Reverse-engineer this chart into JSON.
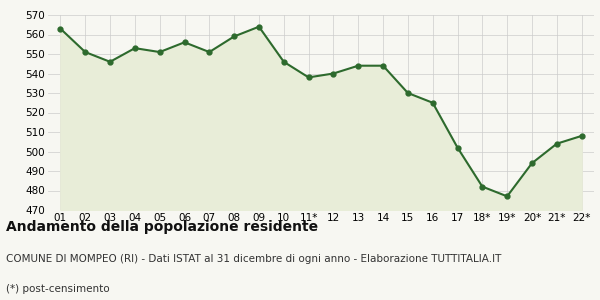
{
  "x_labels": [
    "01",
    "02",
    "03",
    "04",
    "05",
    "06",
    "07",
    "08",
    "09",
    "10",
    "11*",
    "12",
    "13",
    "14",
    "15",
    "16",
    "17",
    "18*",
    "19*",
    "20*",
    "21*",
    "22*"
  ],
  "y_values": [
    563,
    551,
    546,
    553,
    551,
    556,
    551,
    559,
    564,
    546,
    538,
    540,
    544,
    544,
    530,
    525,
    502,
    482,
    477,
    494,
    504,
    508
  ],
  "y_min": 470,
  "y_max": 570,
  "y_tick_step": 10,
  "line_color": "#2d6a2d",
  "fill_color": "#e8edd8",
  "marker": "o",
  "marker_size": 3.5,
  "line_width": 1.5,
  "bg_color": "#f7f7f2",
  "plot_bg_color": "#f7f7f2",
  "grid_color": "#cccccc",
  "title": "Andamento della popolazione residente",
  "subtitle": "COMUNE DI MOMPEO (RI) - Dati ISTAT al 31 dicembre di ogni anno - Elaborazione TUTTITALIA.IT",
  "footnote": "(*) post-censimento",
  "title_fontsize": 10,
  "subtitle_fontsize": 7.5,
  "footnote_fontsize": 7.5,
  "tick_fontsize": 7.5
}
